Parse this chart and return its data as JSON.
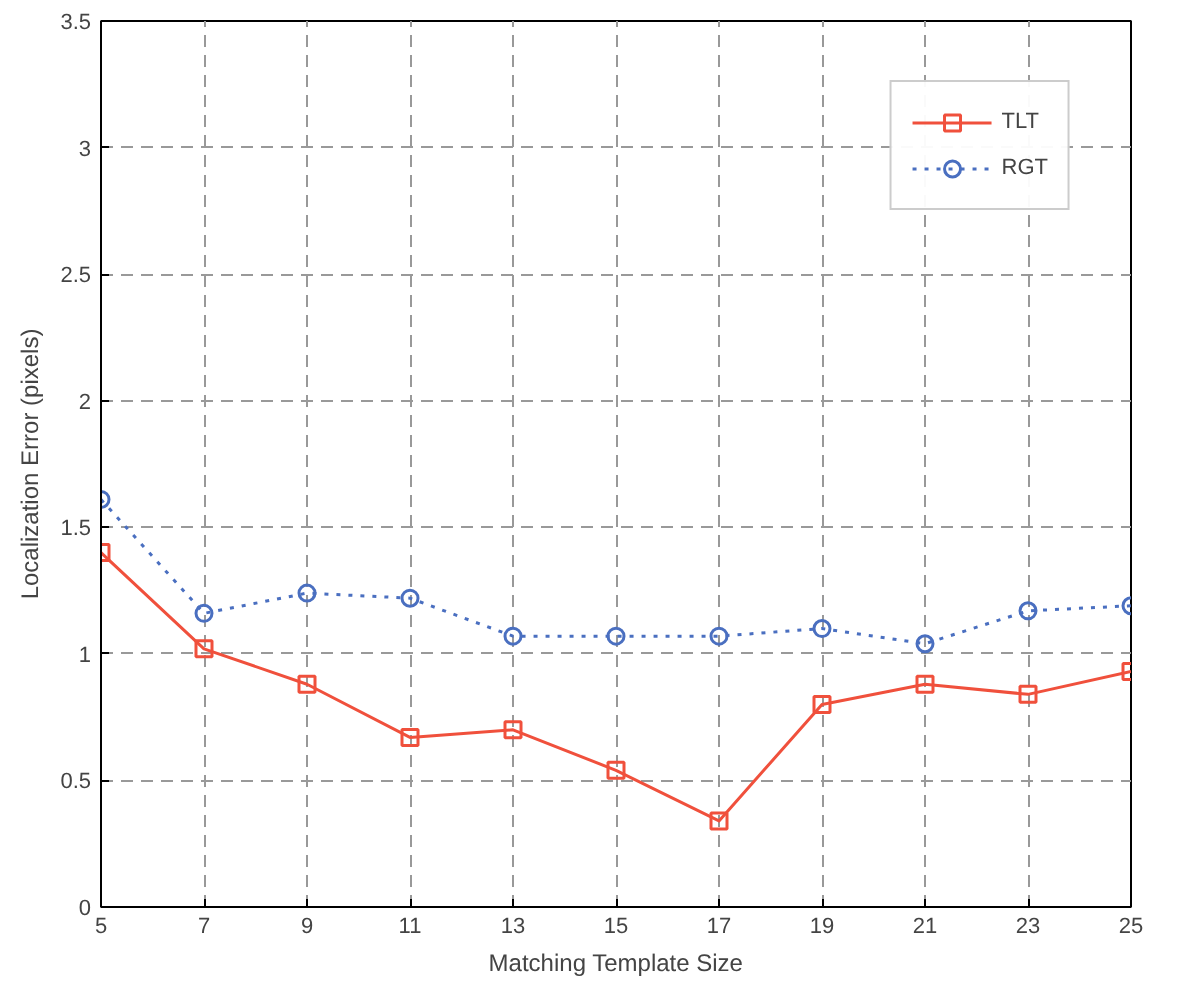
{
  "chart_data": {
    "type": "line",
    "xlabel": "Matching Template Size",
    "ylabel": "Localization Error (pixels)",
    "x": [
      5,
      7,
      9,
      11,
      13,
      15,
      17,
      19,
      21,
      23,
      25
    ],
    "series": [
      {
        "name": "TLT",
        "color": "#f0503c",
        "marker": "square",
        "line_style": "solid",
        "values": [
          1.4,
          1.02,
          0.88,
          0.67,
          0.7,
          0.54,
          0.34,
          0.8,
          0.88,
          0.84,
          0.93
        ]
      },
      {
        "name": "RGT",
        "color": "#4a6fc0",
        "marker": "circle",
        "line_style": "dotted",
        "values": [
          1.61,
          1.16,
          1.24,
          1.22,
          1.07,
          1.07,
          1.07,
          1.1,
          1.04,
          1.17,
          1.19
        ]
      }
    ],
    "xlim": [
      5,
      25
    ],
    "xticks": [
      5,
      7,
      9,
      11,
      13,
      15,
      17,
      19,
      21,
      23,
      25
    ],
    "ylim": [
      0,
      3.5
    ],
    "yticks": [
      0,
      0.5,
      1,
      1.5,
      2,
      2.5,
      3,
      3.5
    ],
    "grid": true,
    "legend": "top right"
  }
}
